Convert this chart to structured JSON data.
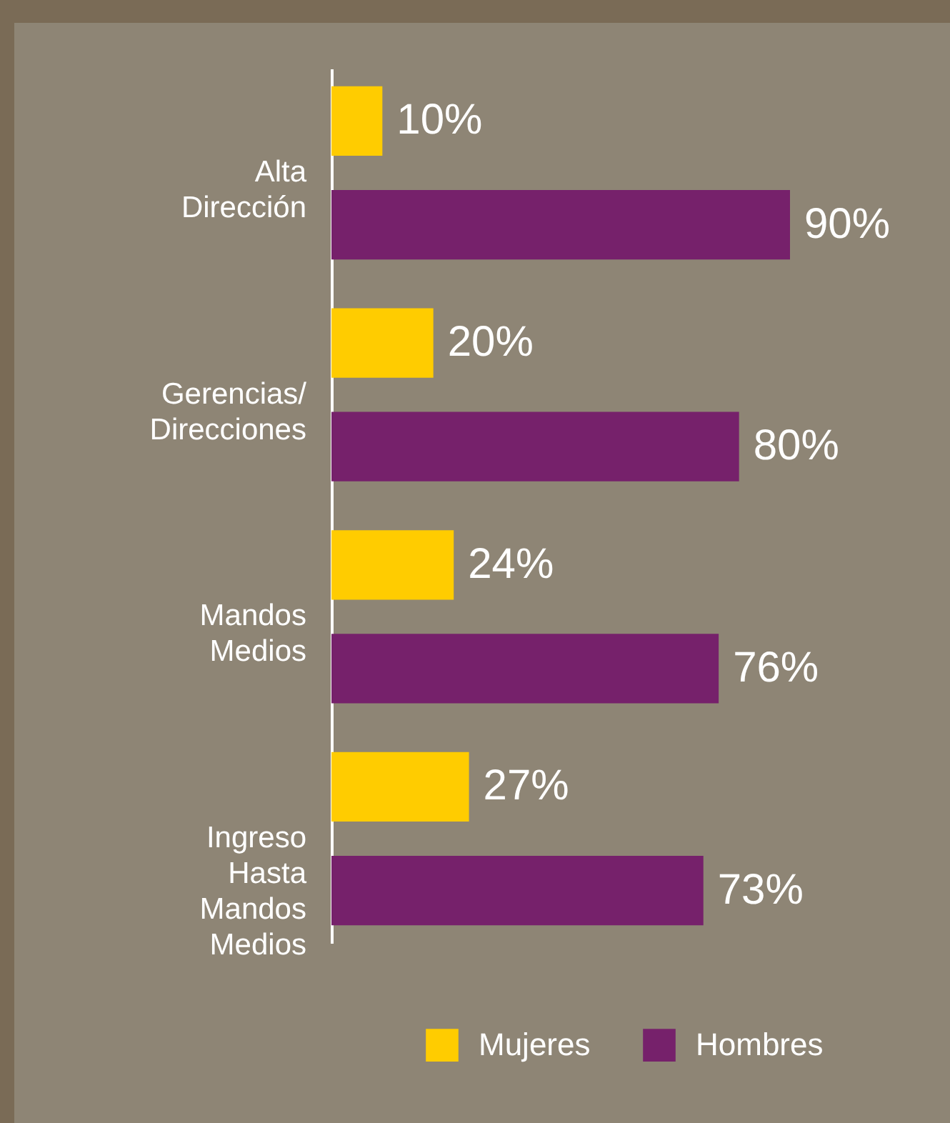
{
  "chart_data": {
    "type": "bar",
    "orientation": "horizontal",
    "categories": [
      "Alta Dirección",
      "Gerencias/ Direcciones",
      "Mandos Medios",
      "Ingreso Hasta Mandos Medios"
    ],
    "series": [
      {
        "name": "Mujeres",
        "color": "#ffcc00",
        "values": [
          10,
          20,
          24,
          27
        ],
        "value_labels": [
          "10%",
          "20%",
          "24%",
          "27%"
        ]
      },
      {
        "name": "Hombres",
        "color": "#76216b",
        "values": [
          90,
          80,
          76,
          73
        ],
        "value_labels": [
          "90%",
          "80%",
          "76%",
          "73%"
        ]
      }
    ],
    "tick_labels": "y",
    "legend": "bottom right"
  }
}
